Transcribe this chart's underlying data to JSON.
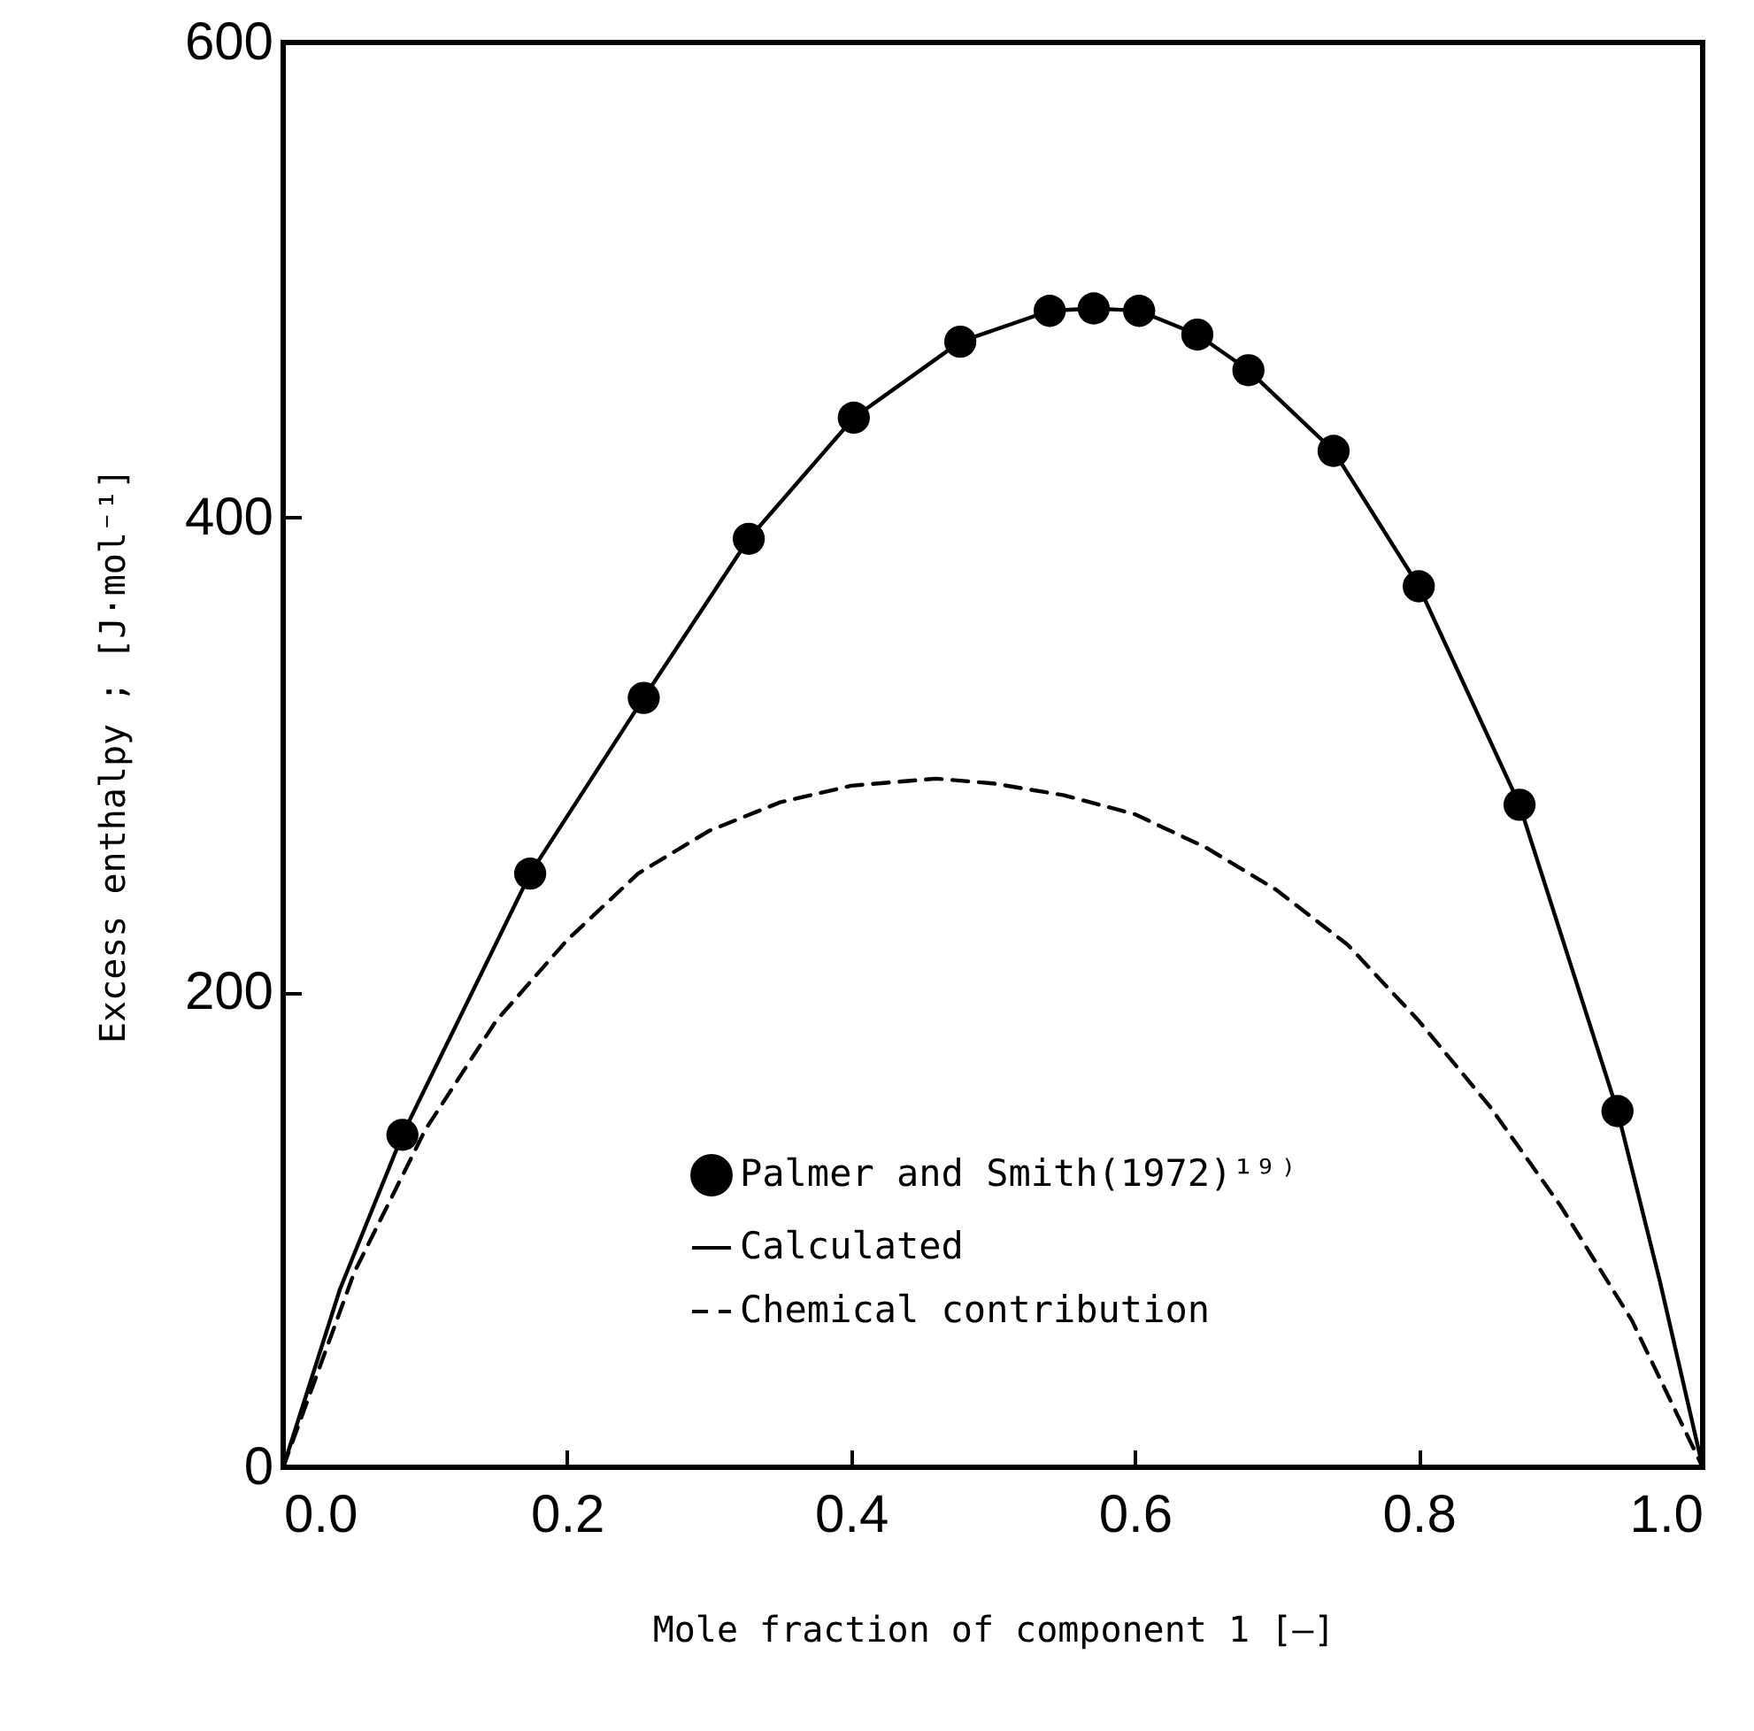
{
  "chart_data": {
    "type": "line",
    "xlabel": "Mole fraction of component 1  [—]",
    "ylabel": "Excess enthalpy ; [J·mol⁻¹]",
    "xlim": [
      0,
      1
    ],
    "xticks": [
      {
        "value": 0,
        "label": "0.0"
      },
      0.2,
      0.4,
      0.6,
      0.8,
      {
        "value": 1,
        "label": "1.0"
      }
    ],
    "ylim": [
      0,
      600
    ],
    "yticks": [
      0,
      200,
      400,
      600
    ],
    "legend": "bottom right",
    "grid": false,
    "series": [
      {
        "name": "Palmer and Smith(1972)¹⁹⁾",
        "type": "scatter",
        "marker": "circle",
        "color": "#000000",
        "x": [
          0.084,
          0.174,
          0.254,
          0.328,
          0.402,
          0.477,
          0.54,
          0.571,
          0.603,
          0.644,
          0.68,
          0.74,
          0.8,
          0.871,
          0.94
        ],
        "values": [
          140,
          250,
          324,
          391,
          442,
          474,
          487,
          488,
          487,
          477,
          462,
          428,
          371,
          279,
          150
        ]
      },
      {
        "name": "Calculated",
        "line_style": "solid",
        "color": "#000000",
        "x": [
          0,
          0.04,
          0.084,
          0.174,
          0.254,
          0.328,
          0.402,
          0.477,
          0.54,
          0.571,
          0.603,
          0.644,
          0.68,
          0.74,
          0.8,
          0.871,
          0.94,
          0.97,
          1
        ],
        "values": [
          0,
          75,
          140,
          250,
          324,
          391,
          442,
          474,
          487,
          488,
          487,
          477,
          462,
          428,
          371,
          279,
          150,
          78,
          0
        ]
      },
      {
        "name": "Chemical contribution",
        "line_style": "dashed",
        "color": "#000000",
        "x": [
          0,
          0.05,
          0.1,
          0.15,
          0.2,
          0.25,
          0.3,
          0.35,
          0.4,
          0.46,
          0.5,
          0.55,
          0.6,
          0.65,
          0.7,
          0.75,
          0.8,
          0.85,
          0.9,
          0.95,
          1
        ],
        "values": [
          0,
          82,
          142,
          188,
          222,
          250,
          268,
          280,
          287,
          290,
          288,
          283,
          275,
          261,
          243,
          220,
          188,
          152,
          110,
          62,
          0
        ]
      }
    ]
  }
}
